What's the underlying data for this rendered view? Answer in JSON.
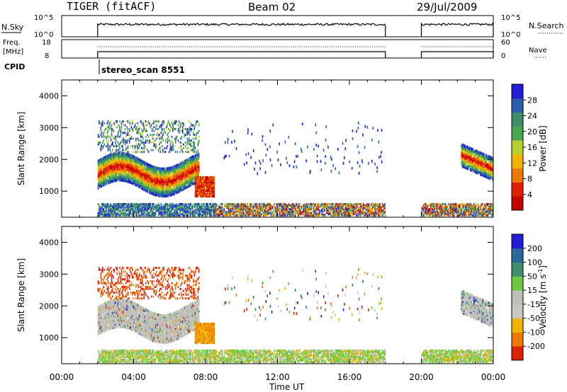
{
  "header": {
    "title": "TIGER (fitACF)",
    "beam": "Beam 02",
    "date": "29/Jul/2009"
  },
  "strips": {
    "nsky_label": "N.Sky",
    "nsky_ticks": [
      "10^5",
      "10^0"
    ],
    "nsearch_label": "N.Search",
    "nsearch_ticks": [
      "10^5",
      "10^0"
    ],
    "freq_label_1": "Freq.",
    "freq_label_2": "[MHz]",
    "freq_ticks": [
      "18",
      "8"
    ],
    "nave_label": "Nave",
    "nave_ticks": [
      "60",
      "0"
    ],
    "cpid_label": "CPID",
    "cpid_text": "stereo_scan 8551"
  },
  "colors": {
    "power_scale": [
      "#1f1fd8",
      "#2a5fb0",
      "#3c8f6a",
      "#46a84a",
      "#b8d030",
      "#f0b400",
      "#f07800",
      "#e02000",
      "#c80000"
    ],
    "velocity_scale": [
      "#1f1fd8",
      "#2a6a9a",
      "#3c8f6a",
      "#6cc83c",
      "#c0c0b8",
      "#c8c8c0",
      "#f0b400",
      "#f07800",
      "#e02000"
    ],
    "ground_scatter": "#c0c0b8"
  },
  "chart_data": [
    {
      "type": "heatmap",
      "name": "power",
      "xlabel": "",
      "ylabel": "Slant Range [km]",
      "x_ticks": [
        "00:00",
        "04:00",
        "08:00",
        "12:00",
        "16:00",
        "20:00",
        "00:00"
      ],
      "x_range_hours": [
        0,
        24
      ],
      "y_ticks": [
        "4000",
        "3000",
        "2000",
        "1000"
      ],
      "y_range_km": [
        180,
        4500
      ],
      "colorbar_label": "Power [dB]",
      "colorbar_ticks": [
        "28",
        "24",
        "20",
        "16",
        "12",
        "8",
        "4"
      ],
      "colorbar_range": [
        0,
        32
      ]
    },
    {
      "type": "heatmap",
      "name": "velocity",
      "xlabel": "Time UT",
      "ylabel": "Slant Range [km]",
      "x_ticks": [
        "00:00",
        "04:00",
        "08:00",
        "12:00",
        "16:00",
        "20:00",
        "00:00"
      ],
      "x_range_hours": [
        0,
        24
      ],
      "y_ticks": [
        "4000",
        "3000",
        "2000",
        "1000"
      ],
      "y_range_km": [
        180,
        4500
      ],
      "colorbar_label": "Velocity [m s^-1]",
      "colorbar_ticks": [
        "200",
        "100",
        "50",
        "15",
        "-15",
        "-50",
        "-100",
        "-200"
      ],
      "colorbar_range": [
        -250,
        250
      ]
    }
  ]
}
